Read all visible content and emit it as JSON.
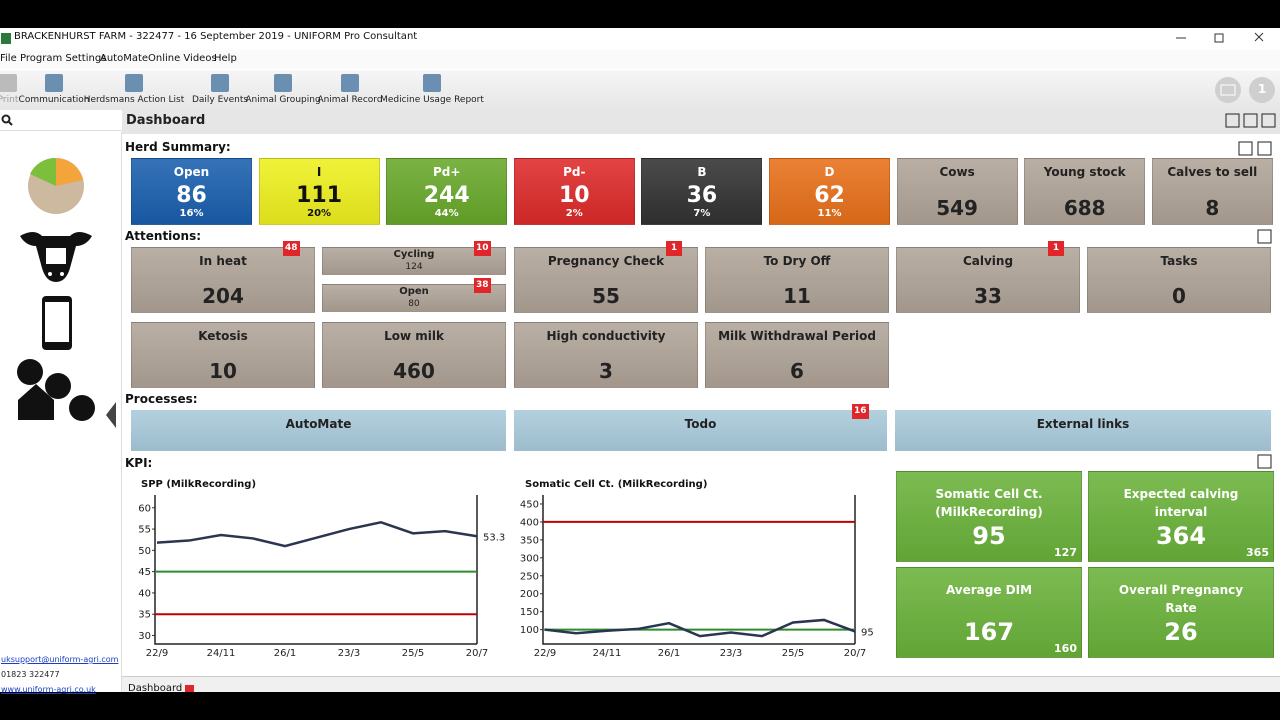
{
  "window": {
    "title": "BRACKENHURST FARM - 322477 - 16 September 2019 - UNIFORM Pro Consultant"
  },
  "menu": [
    "File",
    "Program Settings",
    "AutoMate",
    "Online Videos",
    "Help"
  ],
  "toolbar": [
    "Print",
    "Communication",
    "Herdsmans Action List",
    "Daily Events",
    "Animal Grouping",
    "Animal Record",
    "Medicine Usage Report"
  ],
  "notifications": {
    "count": 1
  },
  "sidebar": {
    "links": [
      "uksupport@uniform-agri.com",
      "01823 322477",
      "www.uniform-agri.co.uk"
    ]
  },
  "dashboard": {
    "title": "Dashboard",
    "tab": "Dashboard"
  },
  "herd_summary": {
    "title": "Herd Summary:",
    "tiles": [
      {
        "label": "Open",
        "value": 86,
        "share": "16%",
        "color": "#1a5fae"
      },
      {
        "label": "I",
        "value": 111,
        "share": "20%",
        "color": "#eef01e"
      },
      {
        "label": "Pd+",
        "value": 244,
        "share": "44%",
        "color": "#68a82a"
      },
      {
        "label": "Pd-",
        "value": 10,
        "share": "2%",
        "color": "#de2a2a"
      },
      {
        "label": "B",
        "value": 36,
        "share": "7%",
        "color": "#323232"
      },
      {
        "label": "D",
        "value": 62,
        "share": "11%",
        "color": "#e8701a"
      },
      {
        "label": "Cows",
        "value": 549,
        "color": "#b0a498"
      },
      {
        "label": "Young stock",
        "value": 688,
        "color": "#b0a498"
      },
      {
        "label": "Calves to sell",
        "value": 8,
        "color": "#b0a498"
      }
    ]
  },
  "attentions": {
    "title": "Attentions:",
    "tiles": [
      {
        "label": "In heat",
        "value": 204,
        "badge": 48
      },
      {
        "label": "Cycling",
        "value": 124,
        "badge": 10
      },
      {
        "label": "Open",
        "value": 80,
        "badge": 38
      },
      {
        "label": "Pregnancy Check",
        "value": 55,
        "badge": 1
      },
      {
        "label": "To Dry Off",
        "value": 11
      },
      {
        "label": "Calving",
        "value": 33,
        "badge": 1
      },
      {
        "label": "Tasks",
        "value": 0
      },
      {
        "label": "Ketosis",
        "value": 10
      },
      {
        "label": "Low milk",
        "value": 460
      },
      {
        "label": "High conductivity",
        "value": 3
      },
      {
        "label": "Milk Withdrawal Period",
        "value": 6
      }
    ]
  },
  "processes": {
    "title": "Processes:",
    "items": [
      {
        "label": "AutoMate"
      },
      {
        "label": "Todo",
        "badge": 16
      },
      {
        "label": "External links"
      }
    ]
  },
  "kpi": {
    "title": "KPI:",
    "charts": [
      {
        "type": "line",
        "title": "SPP (MilkRecording)",
        "categories": [
          "22/9",
          null,
          "24/11",
          null,
          "26/1",
          null,
          "23/3",
          null,
          "25/5",
          null,
          "20/7"
        ],
        "values": [
          51.8,
          52.3,
          53.6,
          52.8,
          51.0,
          53.0,
          55.0,
          56.6,
          54.0,
          54.5,
          53.3
        ],
        "color": "#2a3550",
        "reference_lines": [
          {
            "value": 45,
            "color": "#2e8b2e"
          },
          {
            "value": 35,
            "color": "#c00000"
          }
        ],
        "ylim": [
          28,
          63
        ],
        "yticks": [
          30,
          35,
          40,
          45,
          50,
          55,
          60
        ]
      },
      {
        "type": "line",
        "title": "Somatic Cell Ct. (MilkRecording)",
        "categories": [
          "22/9",
          null,
          "24/11",
          null,
          "26/1",
          null,
          "23/3",
          null,
          "25/5",
          null,
          "20/7"
        ],
        "values": [
          100,
          90,
          97,
          102,
          118,
          82,
          92,
          82,
          120,
          127,
          95
        ],
        "color": "#2a3550",
        "reference_lines": [
          {
            "value": 100,
            "color": "#2e8b2e"
          },
          {
            "value": 400,
            "color": "#c00000"
          }
        ],
        "ylim": [
          60,
          475
        ],
        "yticks": [
          100,
          150,
          200,
          250,
          300,
          350,
          400,
          450
        ]
      }
    ],
    "tiles": [
      {
        "label": "Somatic Cell Ct. (MilkRecording)",
        "value": 95,
        "target": 127
      },
      {
        "label": "Expected calving interval",
        "value": 364,
        "target": 365
      },
      {
        "label": "Average DIM",
        "value": 167,
        "target": 160
      },
      {
        "label": "Overall Pregnancy Rate",
        "value": 26
      }
    ]
  }
}
